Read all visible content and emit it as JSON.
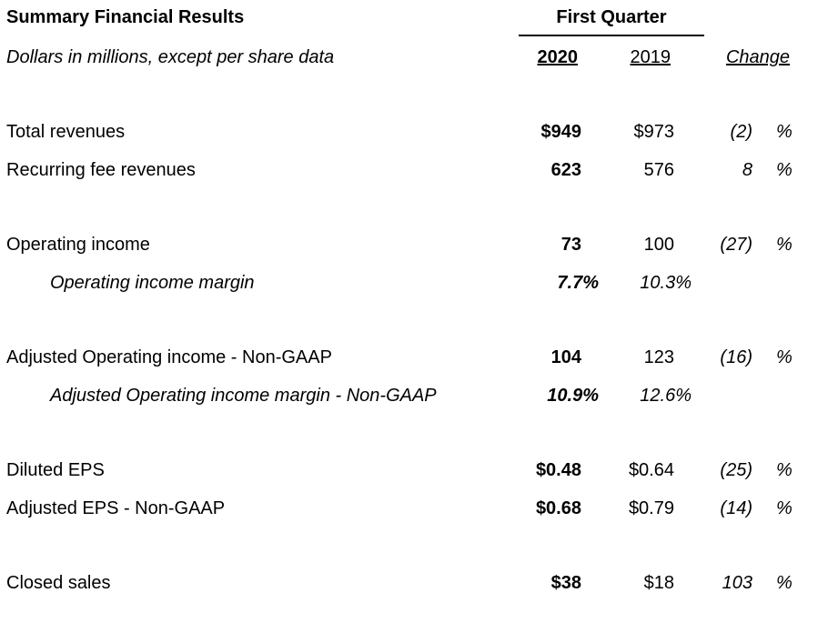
{
  "header": {
    "title": "Summary Financial Results",
    "subtitle": "Dollars in millions, except per share data",
    "period": "First Quarter",
    "col_2020": "2020",
    "col_2019": "2019",
    "col_change": "Change"
  },
  "rows": [
    {
      "label": "Total revenues",
      "v2020": "$949",
      "v2019": "$973",
      "change": "(2)",
      "pct": "%"
    },
    {
      "label": "Recurring fee revenues",
      "v2020": "623",
      "v2019": "576",
      "change": "8",
      "pct": "%"
    },
    {
      "label": "Operating income",
      "v2020": "73",
      "v2019": "100",
      "change": "(27)",
      "pct": "%"
    },
    {
      "label": "Operating income margin",
      "v2020": "7.7%",
      "v2019": "10.3%"
    },
    {
      "label": "Adjusted Operating income - Non-GAAP",
      "v2020": "104",
      "v2019": "123",
      "change": "(16)",
      "pct": "%"
    },
    {
      "label": "Adjusted Operating income margin - Non-GAAP",
      "v2020": "10.9%",
      "v2019": "12.6%"
    },
    {
      "label": "Diluted EPS",
      "v2020": "$0.48",
      "v2019": "$0.64",
      "change": "(25)",
      "pct": "%"
    },
    {
      "label": "Adjusted EPS - Non-GAAP",
      "v2020": "$0.68",
      "v2019": "$0.79",
      "change": "(14)",
      "pct": "%"
    },
    {
      "label": "Closed sales",
      "v2020": "$38",
      "v2019": "$18",
      "change": "103",
      "pct": "%"
    }
  ]
}
